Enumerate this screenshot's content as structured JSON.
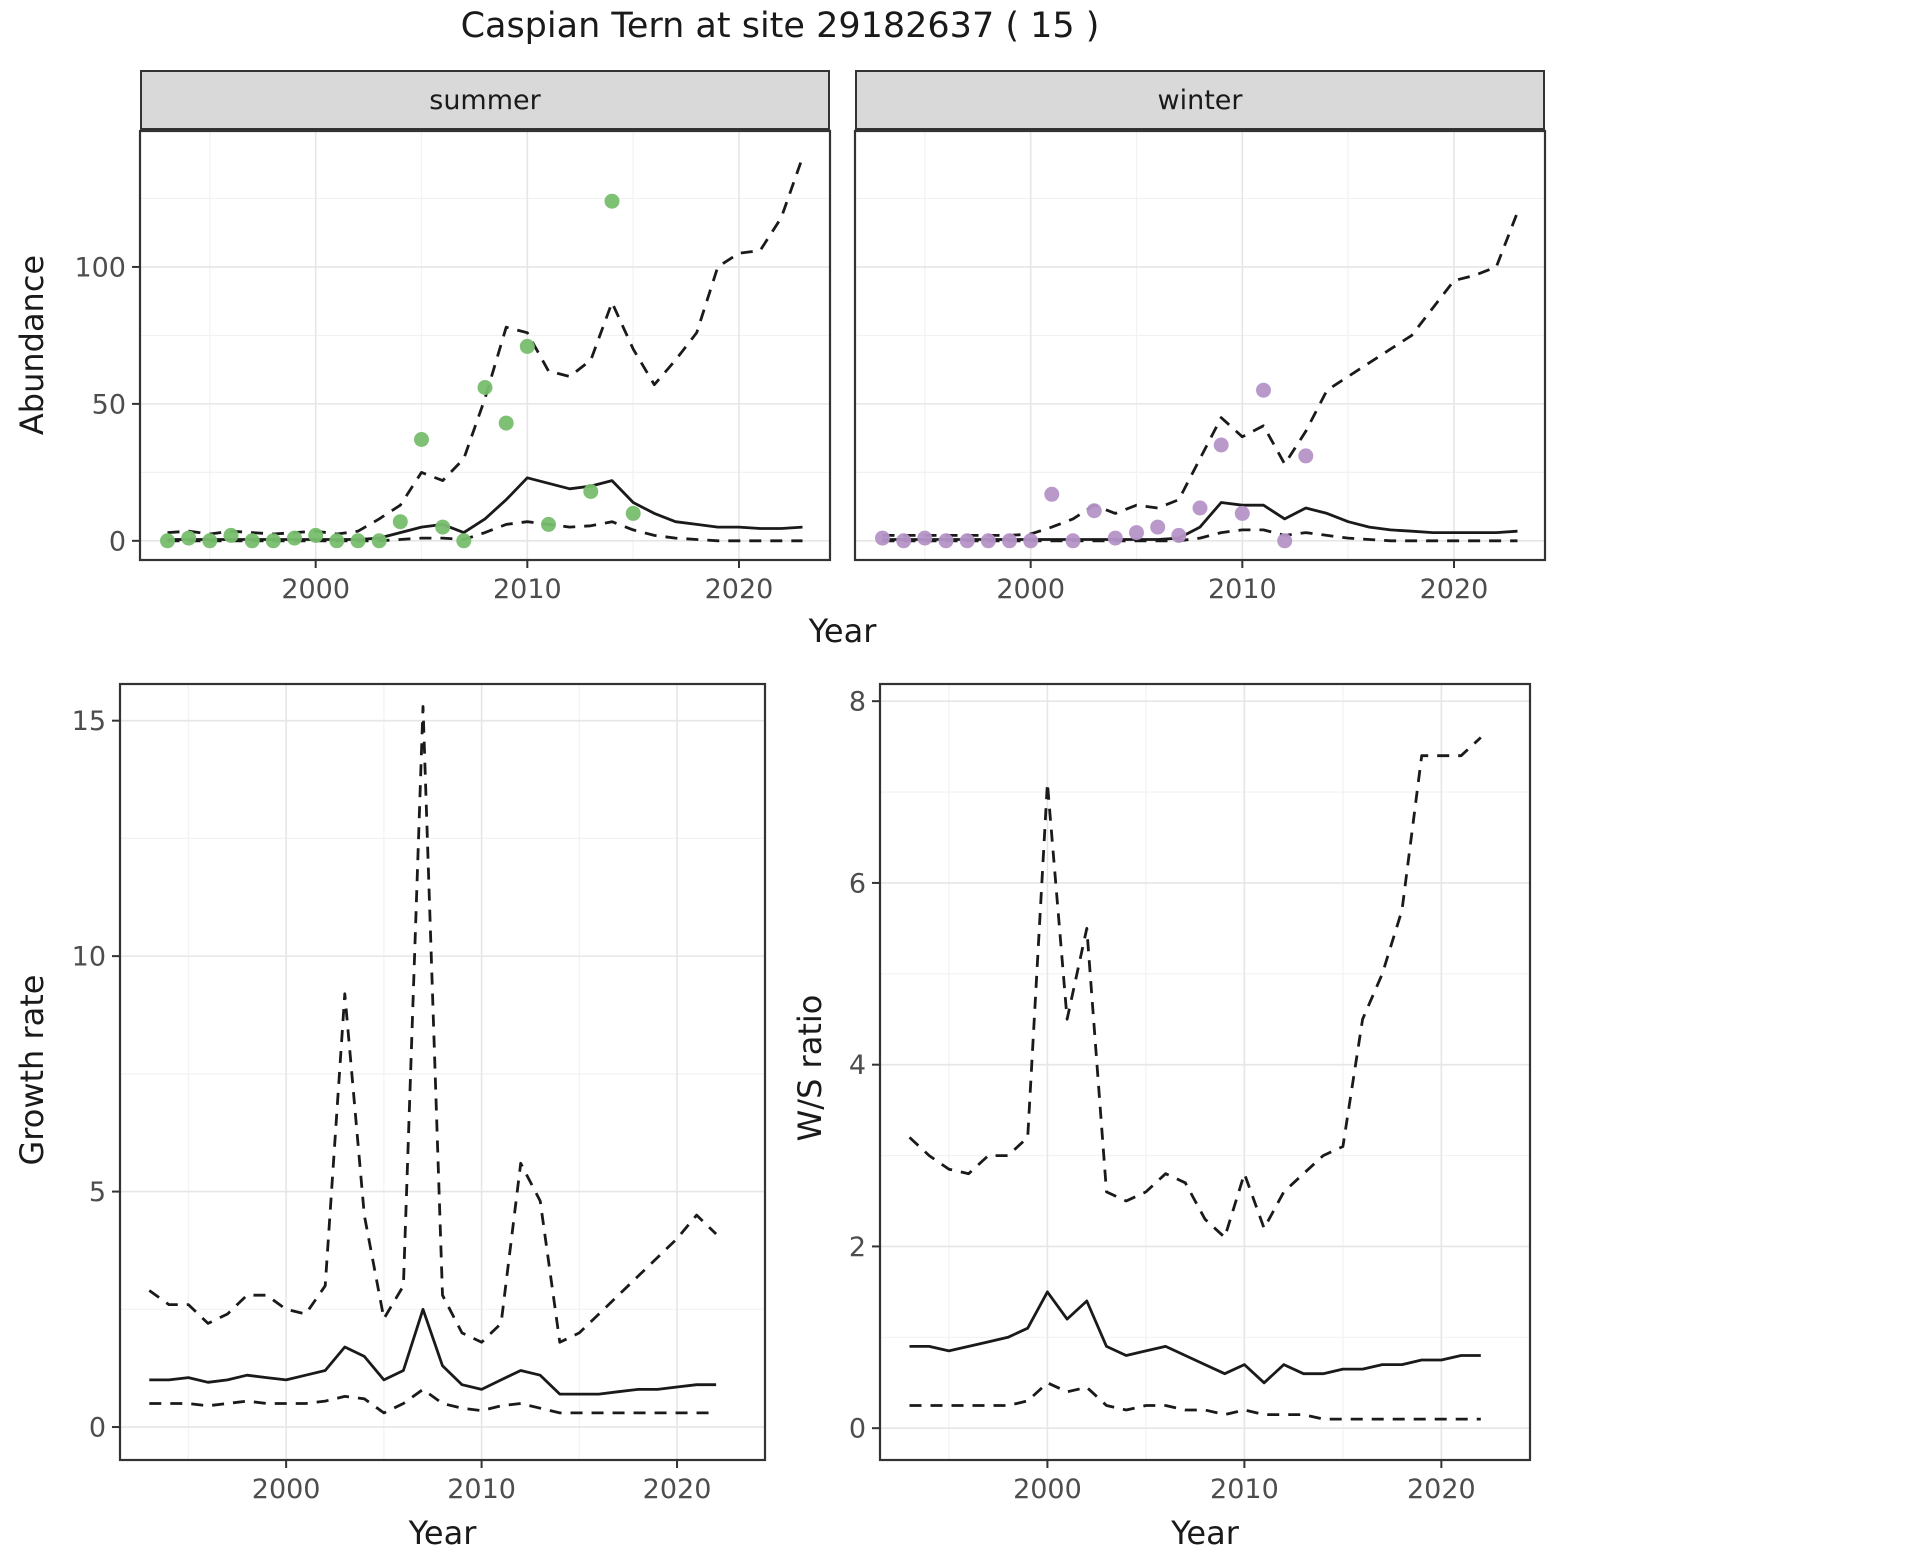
{
  "title": "Caspian Tern at site 29182637 ( 15 )",
  "facets": {
    "summer": "summer",
    "winter": "winter"
  },
  "axis_labels": {
    "x": "Year",
    "abundance": "Abundance",
    "growth_rate": "Growth rate",
    "ws_ratio": "W/S ratio"
  },
  "colors": {
    "line": "#1a1a1a",
    "panel_bg": "#ffffff",
    "panel_border": "#333333",
    "grid_major": "#e6e6e6",
    "grid_minor": "#f2f2f2",
    "tick": "#333333",
    "tick_label": "#4d4d4d",
    "summer_points": "#77be6e",
    "winter_points": "#b593c7"
  },
  "chart_data": [
    {
      "id": "abundance-summer",
      "type": "line+scatter",
      "facet": "summer",
      "xlabel": "Year",
      "ylabel": "Abundance",
      "xlim": [
        1991.7,
        2024.3
      ],
      "ylim": [
        -7,
        150
      ],
      "xticks": [
        2000,
        2010,
        2020
      ],
      "yticks": [
        0,
        50,
        100
      ],
      "xminor": [
        1995,
        2005,
        2015
      ],
      "yminor": [
        25,
        75,
        125
      ],
      "grid": true,
      "legend": "none",
      "series": [
        {
          "name": "upper-ci",
          "style": "dashed",
          "x": [
            1993,
            1994,
            1995,
            1996,
            1997,
            1998,
            1999,
            2000,
            2001,
            2002,
            2003,
            2004,
            2005,
            2006,
            2007,
            2008,
            2009,
            2010,
            2011,
            2012,
            2013,
            2014,
            2015,
            2016,
            2017,
            2018,
            2019,
            2020,
            2021,
            2022,
            2023
          ],
          "y": [
            3,
            3.5,
            2.5,
            3.5,
            3,
            2.5,
            3,
            3.5,
            2.5,
            3.5,
            8,
            13,
            25,
            22,
            30,
            52,
            78,
            76,
            62,
            60,
            66,
            87,
            70,
            57,
            66,
            76,
            100,
            105,
            106,
            118,
            140
          ]
        },
        {
          "name": "median-fit",
          "style": "solid",
          "x": [
            1993,
            1994,
            1995,
            1996,
            1997,
            1998,
            1999,
            2000,
            2001,
            2002,
            2003,
            2004,
            2005,
            2006,
            2007,
            2008,
            2009,
            2010,
            2011,
            2012,
            2013,
            2014,
            2015,
            2016,
            2017,
            2018,
            2019,
            2020,
            2021,
            2022,
            2023
          ],
          "y": [
            0.5,
            0.5,
            0.5,
            0.5,
            0.5,
            0.5,
            0.5,
            0.5,
            0.5,
            0.5,
            1,
            3,
            5,
            6,
            3,
            8,
            15,
            23,
            21,
            19,
            20,
            22,
            14,
            10,
            7,
            6,
            5,
            5,
            4.5,
            4.5,
            5
          ]
        },
        {
          "name": "lower-ci",
          "style": "dashed",
          "x": [
            1993,
            1994,
            1995,
            1996,
            1997,
            1998,
            1999,
            2000,
            2001,
            2002,
            2003,
            2004,
            2005,
            2006,
            2007,
            2008,
            2009,
            2010,
            2011,
            2012,
            2013,
            2014,
            2015,
            2016,
            2017,
            2018,
            2019,
            2020,
            2021,
            2022,
            2023
          ],
          "y": [
            0,
            0,
            0,
            0,
            0,
            0,
            0,
            0,
            0,
            0,
            0,
            0.5,
            1,
            1,
            0.5,
            3,
            6,
            7,
            6,
            5,
            5.5,
            7,
            4,
            2,
            1,
            0.5,
            0,
            0,
            0,
            0,
            0
          ]
        },
        {
          "name": "observed-counts",
          "style": "points",
          "color": "#77be6e",
          "x": [
            1993,
            1994,
            1995,
            1996,
            1997,
            1998,
            1999,
            2000,
            2001,
            2002,
            2003,
            2004,
            2005,
            2006,
            2007,
            2008,
            2009,
            2010,
            2011,
            2013,
            2014,
            2015
          ],
          "y": [
            0,
            1,
            0,
            2,
            0,
            0,
            1,
            2,
            0,
            0,
            0,
            7,
            37,
            5,
            0,
            56,
            43,
            71,
            6,
            18,
            124,
            10
          ]
        }
      ]
    },
    {
      "id": "abundance-winter",
      "type": "line+scatter",
      "facet": "winter",
      "xlabel": "Year",
      "ylabel": "Abundance",
      "xlim": [
        1991.7,
        2024.3
      ],
      "ylim": [
        -7,
        150
      ],
      "xticks": [
        2000,
        2010,
        2020
      ],
      "yticks": [
        0,
        50,
        100
      ],
      "xminor": [
        1995,
        2005,
        2015
      ],
      "yminor": [
        25,
        75,
        125
      ],
      "grid": true,
      "legend": "none",
      "series": [
        {
          "name": "upper-ci",
          "style": "dashed",
          "x": [
            1993,
            1994,
            1995,
            1996,
            1997,
            1998,
            1999,
            2000,
            2001,
            2002,
            2003,
            2004,
            2005,
            2006,
            2007,
            2008,
            2009,
            2010,
            2011,
            2012,
            2013,
            2014,
            2015,
            2016,
            2017,
            2018,
            2019,
            2020,
            2021,
            2022,
            2023
          ],
          "y": [
            2,
            2,
            2,
            2,
            2,
            2,
            2,
            2.5,
            5,
            8,
            13,
            10,
            13,
            12,
            15,
            30,
            45,
            38,
            42,
            28,
            40,
            55,
            60,
            65,
            70,
            75,
            85,
            95,
            97,
            100,
            120
          ]
        },
        {
          "name": "median-fit",
          "style": "solid",
          "x": [
            1993,
            1994,
            1995,
            1996,
            1997,
            1998,
            1999,
            2000,
            2001,
            2002,
            2003,
            2004,
            2005,
            2006,
            2007,
            2008,
            2009,
            2010,
            2011,
            2012,
            2013,
            2014,
            2015,
            2016,
            2017,
            2018,
            2019,
            2020,
            2021,
            2022,
            2023
          ],
          "y": [
            0.5,
            0.5,
            0.5,
            0.5,
            0.5,
            0.5,
            0.5,
            0.5,
            0.5,
            0.5,
            0.5,
            0.5,
            0.5,
            0.5,
            1,
            5,
            14,
            13,
            13,
            8,
            12,
            10,
            7,
            5,
            4,
            3.5,
            3,
            3,
            3,
            3,
            3.5
          ]
        },
        {
          "name": "lower-ci",
          "style": "dashed",
          "x": [
            1993,
            1994,
            1995,
            1996,
            1997,
            1998,
            1999,
            2000,
            2001,
            2002,
            2003,
            2004,
            2005,
            2006,
            2007,
            2008,
            2009,
            2010,
            2011,
            2012,
            2013,
            2014,
            2015,
            2016,
            2017,
            2018,
            2019,
            2020,
            2021,
            2022,
            2023
          ],
          "y": [
            0,
            0,
            0,
            0,
            0,
            0,
            0,
            0,
            0,
            0,
            0,
            0,
            0,
            0,
            0,
            1,
            3,
            4,
            4,
            2,
            3,
            2,
            1,
            0.5,
            0,
            0,
            0,
            0,
            0,
            0,
            0
          ]
        },
        {
          "name": "observed-counts",
          "style": "points",
          "color": "#b593c7",
          "x": [
            1993,
            1994,
            1995,
            1996,
            1997,
            1998,
            1999,
            2000,
            2001,
            2002,
            2003,
            2004,
            2005,
            2006,
            2007,
            2008,
            2009,
            2010,
            2011,
            2012,
            2013
          ],
          "y": [
            1,
            0,
            1,
            0,
            0,
            0,
            0,
            0,
            17,
            0,
            11,
            1,
            3,
            5,
            2,
            12,
            35,
            10,
            55,
            0,
            31
          ]
        }
      ]
    },
    {
      "id": "growth-rate",
      "type": "line",
      "xlabel": "Year",
      "ylabel": "Growth rate",
      "xlim": [
        1991.5,
        2024.5
      ],
      "ylim": [
        -0.7,
        15.8
      ],
      "xticks": [
        2000,
        2010,
        2020
      ],
      "yticks": [
        0,
        5,
        10,
        15
      ],
      "xminor": [
        1995,
        2005,
        2015
      ],
      "yminor": [
        2.5,
        7.5,
        12.5
      ],
      "grid": true,
      "legend": "none",
      "series": [
        {
          "name": "upper-ci",
          "style": "dashed",
          "x": [
            1993,
            1994,
            1995,
            1996,
            1997,
            1998,
            1999,
            2000,
            2001,
            2002,
            2003,
            2004,
            2005,
            2006,
            2007,
            2008,
            2009,
            2010,
            2011,
            2012,
            2013,
            2014,
            2015,
            2016,
            2017,
            2018,
            2019,
            2020,
            2021,
            2022
          ],
          "y": [
            2.9,
            2.6,
            2.6,
            2.2,
            2.4,
            2.8,
            2.8,
            2.5,
            2.4,
            3.0,
            9.2,
            4.5,
            2.3,
            3.0,
            15.3,
            2.8,
            2.0,
            1.8,
            2.2,
            5.6,
            4.8,
            1.8,
            2.0,
            2.4,
            2.8,
            3.2,
            3.6,
            4.0,
            4.5,
            4.1
          ]
        },
        {
          "name": "median-fit",
          "style": "solid",
          "x": [
            1993,
            1994,
            1995,
            1996,
            1997,
            1998,
            1999,
            2000,
            2001,
            2002,
            2003,
            2004,
            2005,
            2006,
            2007,
            2008,
            2009,
            2010,
            2011,
            2012,
            2013,
            2014,
            2015,
            2016,
            2017,
            2018,
            2019,
            2020,
            2021,
            2022
          ],
          "y": [
            1,
            1,
            1.05,
            0.95,
            1,
            1.1,
            1.05,
            1,
            1.1,
            1.2,
            1.7,
            1.5,
            1,
            1.2,
            2.5,
            1.3,
            0.9,
            0.8,
            1,
            1.2,
            1.1,
            0.7,
            0.7,
            0.7,
            0.75,
            0.8,
            0.8,
            0.85,
            0.9,
            0.9
          ]
        },
        {
          "name": "lower-ci",
          "style": "dashed",
          "x": [
            1993,
            1994,
            1995,
            1996,
            1997,
            1998,
            1999,
            2000,
            2001,
            2002,
            2003,
            2004,
            2005,
            2006,
            2007,
            2008,
            2009,
            2010,
            2011,
            2012,
            2013,
            2014,
            2015,
            2016,
            2017,
            2018,
            2019,
            2020,
            2021,
            2022
          ],
          "y": [
            0.5,
            0.5,
            0.5,
            0.45,
            0.5,
            0.55,
            0.5,
            0.5,
            0.5,
            0.55,
            0.65,
            0.6,
            0.3,
            0.5,
            0.8,
            0.5,
            0.4,
            0.35,
            0.45,
            0.5,
            0.4,
            0.3,
            0.3,
            0.3,
            0.3,
            0.3,
            0.3,
            0.3,
            0.3,
            0.3
          ]
        }
      ]
    },
    {
      "id": "ws-ratio",
      "type": "line",
      "xlabel": "Year",
      "ylabel": "W/S ratio",
      "xlim": [
        1991.5,
        2024.5
      ],
      "ylim": [
        -0.35,
        8.2
      ],
      "xticks": [
        2000,
        2010,
        2020
      ],
      "yticks": [
        0,
        2,
        4,
        6,
        8
      ],
      "xminor": [
        1995,
        2005,
        2015
      ],
      "yminor": [
        1,
        3,
        5,
        7
      ],
      "grid": true,
      "legend": "none",
      "series": [
        {
          "name": "upper-ci",
          "style": "dashed",
          "x": [
            1993,
            1994,
            1995,
            1996,
            1997,
            1998,
            1999,
            2000,
            2001,
            2002,
            2003,
            2004,
            2005,
            2006,
            2007,
            2008,
            2009,
            2010,
            2011,
            2012,
            2013,
            2014,
            2015,
            2016,
            2017,
            2018,
            2019,
            2020,
            2021,
            2022
          ],
          "y": [
            3.2,
            3.0,
            2.85,
            2.8,
            3.0,
            3.0,
            3.2,
            7.1,
            4.5,
            5.5,
            2.6,
            2.5,
            2.6,
            2.8,
            2.7,
            2.3,
            2.1,
            2.8,
            2.2,
            2.6,
            2.8,
            3.0,
            3.1,
            4.5,
            5.0,
            5.7,
            7.4,
            7.4,
            7.4,
            7.6
          ]
        },
        {
          "name": "median-fit",
          "style": "solid",
          "x": [
            1993,
            1994,
            1995,
            1996,
            1997,
            1998,
            1999,
            2000,
            2001,
            2002,
            2003,
            2004,
            2005,
            2006,
            2007,
            2008,
            2009,
            2010,
            2011,
            2012,
            2013,
            2014,
            2015,
            2016,
            2017,
            2018,
            2019,
            2020,
            2021,
            2022
          ],
          "y": [
            0.9,
            0.9,
            0.85,
            0.9,
            0.95,
            1.0,
            1.1,
            1.5,
            1.2,
            1.4,
            0.9,
            0.8,
            0.85,
            0.9,
            0.8,
            0.7,
            0.6,
            0.7,
            0.5,
            0.7,
            0.6,
            0.6,
            0.65,
            0.65,
            0.7,
            0.7,
            0.75,
            0.75,
            0.8,
            0.8
          ]
        },
        {
          "name": "lower-ci",
          "style": "dashed",
          "x": [
            1993,
            1994,
            1995,
            1996,
            1997,
            1998,
            1999,
            2000,
            2001,
            2002,
            2003,
            2004,
            2005,
            2006,
            2007,
            2008,
            2009,
            2010,
            2011,
            2012,
            2013,
            2014,
            2015,
            2016,
            2017,
            2018,
            2019,
            2020,
            2021,
            2022
          ],
          "y": [
            0.25,
            0.25,
            0.25,
            0.25,
            0.25,
            0.25,
            0.3,
            0.5,
            0.4,
            0.45,
            0.25,
            0.2,
            0.25,
            0.25,
            0.2,
            0.2,
            0.15,
            0.2,
            0.15,
            0.15,
            0.15,
            0.1,
            0.1,
            0.1,
            0.1,
            0.1,
            0.1,
            0.1,
            0.1,
            0.1
          ]
        }
      ]
    }
  ]
}
